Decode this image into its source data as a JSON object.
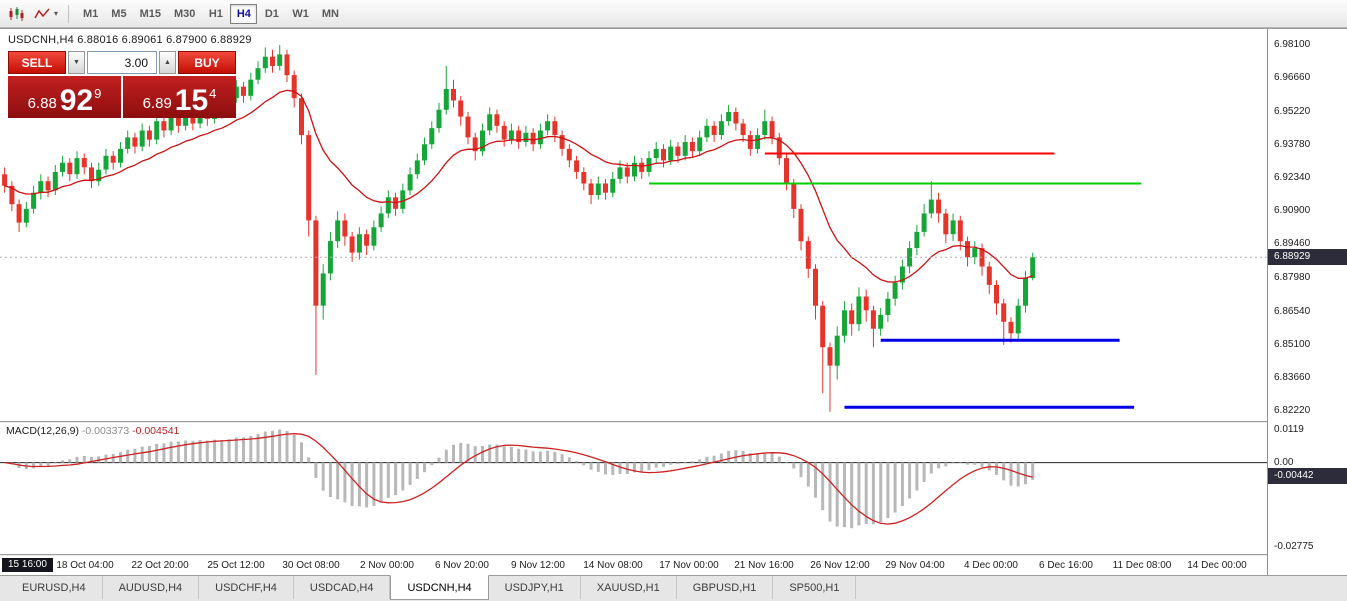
{
  "toolbar": {
    "timeframes": [
      "M1",
      "M5",
      "M15",
      "M30",
      "H1",
      "H4",
      "D1",
      "W1",
      "MN"
    ],
    "active_timeframe": "H4",
    "caret": "▾"
  },
  "chart": {
    "title": "USDCNH,H4 6.88016 6.89061 6.87900 6.88929",
    "symbol": "USDCNH",
    "period": "H4",
    "ohlc": {
      "open": "6.88016",
      "high": "6.89061",
      "low": "6.87900",
      "close": "6.88929"
    }
  },
  "trade_panel": {
    "sell_label": "SELL",
    "buy_label": "BUY",
    "volume": "3.00",
    "icons": {
      "dropdown_down": "▼",
      "spinner_up": "▲"
    },
    "sell_price": {
      "small": "6.88",
      "big": "92",
      "sup": "9"
    },
    "buy_price": {
      "small": "6.89",
      "big": "15",
      "sup": "4"
    }
  },
  "price_axis": {
    "labels": [
      "6.98100",
      "6.96660",
      "6.95220",
      "6.93780",
      "6.92340",
      "6.90900",
      "6.89460",
      "6.87980",
      "6.86540",
      "6.85100",
      "6.83660",
      "6.82220"
    ],
    "current_price": "6.88929"
  },
  "macd_panel": {
    "label": "MACD(12,26,9)",
    "value_main": "-0.003373",
    "value_signal": "-0.004541",
    "axis_labels": [
      "0.0119",
      "0.00",
      "-0.02775"
    ],
    "current_value": "-0.00442"
  },
  "time_axis": {
    "highlight": "15 16:00",
    "labels": [
      "18 Oct 04:00",
      "22 Oct 20:00",
      "25 Oct 12:00",
      "30 Oct 08:00",
      "2 Nov 00:00",
      "6 Nov 20:00",
      "9 Nov 12:00",
      "14 Nov 08:00",
      "17 Nov 00:00",
      "21 Nov 16:00",
      "26 Nov 12:00",
      "29 Nov 04:00",
      "4 Dec 00:00",
      "6 Dec 16:00",
      "11 Dec 08:00",
      "14 Dec 00:00"
    ]
  },
  "tabs": {
    "items": [
      "EURUSD,H4",
      "AUDUSD,H4",
      "USDCHF,H4",
      "USDCAD,H4",
      "USDCNH,H4",
      "USDJPY,H1",
      "XAUUSD,H1",
      "GBPUSD,H1",
      "SP500,H1"
    ],
    "active": "USDCNH,H4"
  },
  "chart_data": {
    "type": "candlestick",
    "symbol": "USDCNH",
    "timeframe": "H4",
    "bars_total": 175,
    "price_range": [
      6.818,
      6.988
    ],
    "macd_range": [
      -0.03,
      0.013
    ],
    "ma_period": 16,
    "macd_params": [
      12,
      26,
      9
    ],
    "colors": {
      "up": "#16a637",
      "down": "#e5352b",
      "ma": "#cc1111",
      "macd_hist": "#b8b8b8",
      "macd_signal": "#cc2222",
      "bid_line": "#b0b0b0"
    },
    "hlines": [
      {
        "color": "#ff0000",
        "price": 6.934,
        "from_bar": 105,
        "to_bar": 145,
        "width": 2
      },
      {
        "color": "#00cc00",
        "price": 6.921,
        "from_bar": 89,
        "to_bar": 157,
        "width": 2
      },
      {
        "color": "#0000e6",
        "price": 6.853,
        "from_bar": 121,
        "to_bar": 154,
        "width": 3
      },
      {
        "color": "#0000e6",
        "price": 6.824,
        "from_bar": 116,
        "to_bar": 156,
        "width": 3
      }
    ],
    "candles": [
      [
        6.925,
        6.928,
        6.917,
        6.92
      ],
      [
        6.92,
        6.922,
        6.909,
        6.912
      ],
      [
        6.912,
        6.914,
        6.9,
        6.904
      ],
      [
        6.904,
        6.913,
        6.902,
        6.91
      ],
      [
        6.91,
        6.92,
        6.908,
        6.917
      ],
      [
        6.917,
        6.925,
        6.914,
        6.922
      ],
      [
        6.922,
        6.924,
        6.915,
        6.918
      ],
      [
        6.918,
        6.929,
        6.916,
        6.926
      ],
      [
        6.926,
        6.933,
        6.924,
        6.93
      ],
      [
        6.93,
        6.932,
        6.922,
        6.925
      ],
      [
        6.925,
        6.935,
        6.923,
        6.932
      ],
      [
        6.932,
        6.934,
        6.925,
        6.928
      ],
      [
        6.928,
        6.93,
        6.919,
        6.922
      ],
      [
        6.922,
        6.93,
        6.92,
        6.927
      ],
      [
        6.927,
        6.936,
        6.925,
        6.933
      ],
      [
        6.933,
        6.935,
        6.927,
        6.93
      ],
      [
        6.93,
        6.939,
        6.928,
        6.936
      ],
      [
        6.936,
        6.944,
        6.934,
        6.941
      ],
      [
        6.941,
        6.943,
        6.934,
        6.937
      ],
      [
        6.937,
        6.947,
        6.935,
        6.944
      ],
      [
        6.944,
        6.946,
        6.937,
        6.94
      ],
      [
        6.94,
        6.951,
        6.938,
        6.948
      ],
      [
        6.948,
        6.952,
        6.941,
        6.944
      ],
      [
        6.944,
        6.953,
        6.942,
        6.95
      ],
      [
        6.95,
        6.952,
        6.943,
        6.946
      ],
      [
        6.946,
        6.954,
        6.944,
        6.951
      ],
      [
        6.951,
        6.953,
        6.944,
        6.947
      ],
      [
        6.947,
        6.956,
        6.945,
        6.953
      ],
      [
        6.953,
        6.955,
        6.946,
        6.949
      ],
      [
        6.949,
        6.958,
        6.947,
        6.955
      ],
      [
        6.955,
        6.957,
        6.949,
        6.952
      ],
      [
        6.952,
        6.961,
        6.95,
        6.958
      ],
      [
        6.958,
        6.966,
        6.956,
        6.963
      ],
      [
        6.963,
        6.965,
        6.956,
        6.959
      ],
      [
        6.959,
        6.969,
        6.957,
        6.966
      ],
      [
        6.966,
        6.974,
        6.964,
        6.971
      ],
      [
        6.971,
        6.98,
        6.969,
        6.976
      ],
      [
        6.976,
        6.979,
        6.969,
        6.972
      ],
      [
        6.972,
        6.981,
        6.97,
        6.977
      ],
      [
        6.977,
        6.979,
        6.965,
        6.968
      ],
      [
        6.968,
        6.97,
        6.954,
        6.958
      ],
      [
        6.958,
        6.96,
        6.938,
        6.942
      ],
      [
        6.942,
        6.944,
        6.898,
        6.905
      ],
      [
        6.905,
        6.907,
        6.838,
        6.868
      ],
      [
        6.868,
        6.886,
        6.862,
        6.882
      ],
      [
        6.882,
        6.9,
        6.879,
        6.896
      ],
      [
        6.896,
        6.909,
        6.893,
        6.905
      ],
      [
        6.905,
        6.908,
        6.894,
        6.898
      ],
      [
        6.898,
        6.9,
        6.887,
        6.891
      ],
      [
        6.891,
        6.902,
        6.888,
        6.899
      ],
      [
        6.899,
        6.901,
        6.89,
        6.894
      ],
      [
        6.894,
        6.905,
        6.892,
        6.902
      ],
      [
        6.902,
        6.911,
        6.9,
        6.908
      ],
      [
        6.908,
        6.918,
        6.906,
        6.915
      ],
      [
        6.915,
        6.917,
        6.907,
        6.91
      ],
      [
        6.91,
        6.921,
        6.908,
        6.918
      ],
      [
        6.918,
        6.928,
        6.916,
        6.925
      ],
      [
        6.925,
        6.934,
        6.923,
        6.931
      ],
      [
        6.931,
        6.941,
        6.929,
        6.938
      ],
      [
        6.938,
        6.948,
        6.936,
        6.945
      ],
      [
        6.945,
        6.956,
        6.943,
        6.953
      ],
      [
        6.953,
        6.972,
        6.951,
        6.962
      ],
      [
        6.962,
        6.966,
        6.954,
        6.957
      ],
      [
        6.957,
        6.959,
        6.946,
        6.95
      ],
      [
        6.95,
        6.952,
        6.938,
        6.941
      ],
      [
        6.941,
        6.943,
        6.931,
        6.935
      ],
      [
        6.935,
        6.947,
        6.933,
        6.944
      ],
      [
        6.944,
        6.954,
        6.942,
        6.951
      ],
      [
        6.951,
        6.953,
        6.943,
        6.946
      ],
      [
        6.946,
        6.948,
        6.937,
        6.94
      ],
      [
        6.94,
        6.947,
        6.938,
        6.944
      ],
      [
        6.944,
        6.946,
        6.936,
        6.939
      ],
      [
        6.939,
        6.946,
        6.937,
        6.943
      ],
      [
        6.943,
        6.945,
        6.935,
        6.938
      ],
      [
        6.938,
        6.947,
        6.936,
        6.944
      ],
      [
        6.944,
        6.951,
        6.942,
        6.948
      ],
      [
        6.948,
        6.95,
        6.939,
        6.942
      ],
      [
        6.942,
        6.944,
        6.933,
        6.936
      ],
      [
        6.936,
        6.938,
        6.928,
        6.931
      ],
      [
        6.931,
        6.933,
        6.923,
        6.926
      ],
      [
        6.926,
        6.928,
        6.918,
        6.921
      ],
      [
        6.921,
        6.923,
        6.912,
        6.916
      ],
      [
        6.916,
        6.924,
        6.914,
        6.921
      ],
      [
        6.921,
        6.923,
        6.914,
        6.917
      ],
      [
        6.917,
        6.926,
        6.915,
        6.923
      ],
      [
        6.923,
        6.931,
        6.921,
        6.928
      ],
      [
        6.928,
        6.93,
        6.921,
        6.924
      ],
      [
        6.924,
        6.933,
        6.922,
        6.93
      ],
      [
        6.93,
        6.932,
        6.923,
        6.926
      ],
      [
        6.926,
        6.935,
        6.924,
        6.932
      ],
      [
        6.932,
        6.939,
        6.93,
        6.936
      ],
      [
        6.936,
        6.938,
        6.928,
        6.931
      ],
      [
        6.931,
        6.94,
        6.929,
        6.937
      ],
      [
        6.937,
        6.939,
        6.93,
        6.933
      ],
      [
        6.933,
        6.942,
        6.931,
        6.939
      ],
      [
        6.939,
        6.941,
        6.932,
        6.935
      ],
      [
        6.935,
        6.944,
        6.933,
        6.941
      ],
      [
        6.941,
        6.949,
        6.939,
        6.946
      ],
      [
        6.946,
        6.948,
        6.939,
        6.942
      ],
      [
        6.942,
        6.951,
        6.94,
        6.948
      ],
      [
        6.948,
        6.955,
        6.946,
        6.952
      ],
      [
        6.952,
        6.954,
        6.944,
        6.947
      ],
      [
        6.947,
        6.949,
        6.939,
        6.942
      ],
      [
        6.942,
        6.944,
        6.933,
        6.936
      ],
      [
        6.936,
        6.945,
        6.934,
        6.942
      ],
      [
        6.942,
        6.953,
        6.94,
        6.948
      ],
      [
        6.948,
        6.95,
        6.938,
        6.941
      ],
      [
        6.941,
        6.943,
        6.929,
        6.932
      ],
      [
        6.932,
        6.934,
        6.918,
        6.921
      ],
      [
        6.921,
        6.923,
        6.906,
        6.91
      ],
      [
        6.91,
        6.912,
        6.892,
        6.896
      ],
      [
        6.896,
        6.898,
        6.88,
        6.884
      ],
      [
        6.884,
        6.886,
        6.862,
        6.868
      ],
      [
        6.868,
        6.87,
        6.83,
        6.85
      ],
      [
        6.85,
        6.852,
        6.822,
        6.842
      ],
      [
        6.842,
        6.859,
        6.836,
        6.855
      ],
      [
        6.855,
        6.87,
        6.852,
        6.866
      ],
      [
        6.866,
        6.869,
        6.855,
        6.86
      ],
      [
        6.86,
        6.876,
        6.857,
        6.872
      ],
      [
        6.872,
        6.875,
        6.861,
        6.866
      ],
      [
        6.866,
        6.868,
        6.85,
        6.858
      ],
      [
        6.858,
        6.867,
        6.855,
        6.864
      ],
      [
        6.864,
        6.874,
        6.861,
        6.871
      ],
      [
        6.871,
        6.881,
        6.868,
        6.878
      ],
      [
        6.878,
        6.888,
        6.875,
        6.885
      ],
      [
        6.885,
        6.896,
        6.882,
        6.893
      ],
      [
        6.893,
        6.903,
        6.89,
        6.9
      ],
      [
        6.9,
        6.912,
        6.898,
        6.908
      ],
      [
        6.908,
        6.922,
        6.906,
        6.914
      ],
      [
        6.914,
        6.917,
        6.904,
        6.908
      ],
      [
        6.908,
        6.91,
        6.895,
        6.899
      ],
      [
        6.899,
        6.908,
        6.896,
        6.905
      ],
      [
        6.905,
        6.907,
        6.892,
        6.896
      ],
      [
        6.896,
        6.898,
        6.885,
        6.889
      ],
      [
        6.889,
        6.896,
        6.886,
        6.893
      ],
      [
        6.893,
        6.895,
        6.881,
        6.885
      ],
      [
        6.885,
        6.887,
        6.873,
        6.877
      ],
      [
        6.877,
        6.879,
        6.864,
        6.869
      ],
      [
        6.869,
        6.871,
        6.851,
        6.861
      ],
      [
        6.861,
        6.863,
        6.852,
        6.856
      ],
      [
        6.856,
        6.871,
        6.853,
        6.868
      ],
      [
        6.868,
        6.883,
        6.865,
        6.88
      ],
      [
        6.88,
        6.891,
        6.879,
        6.889
      ]
    ]
  }
}
